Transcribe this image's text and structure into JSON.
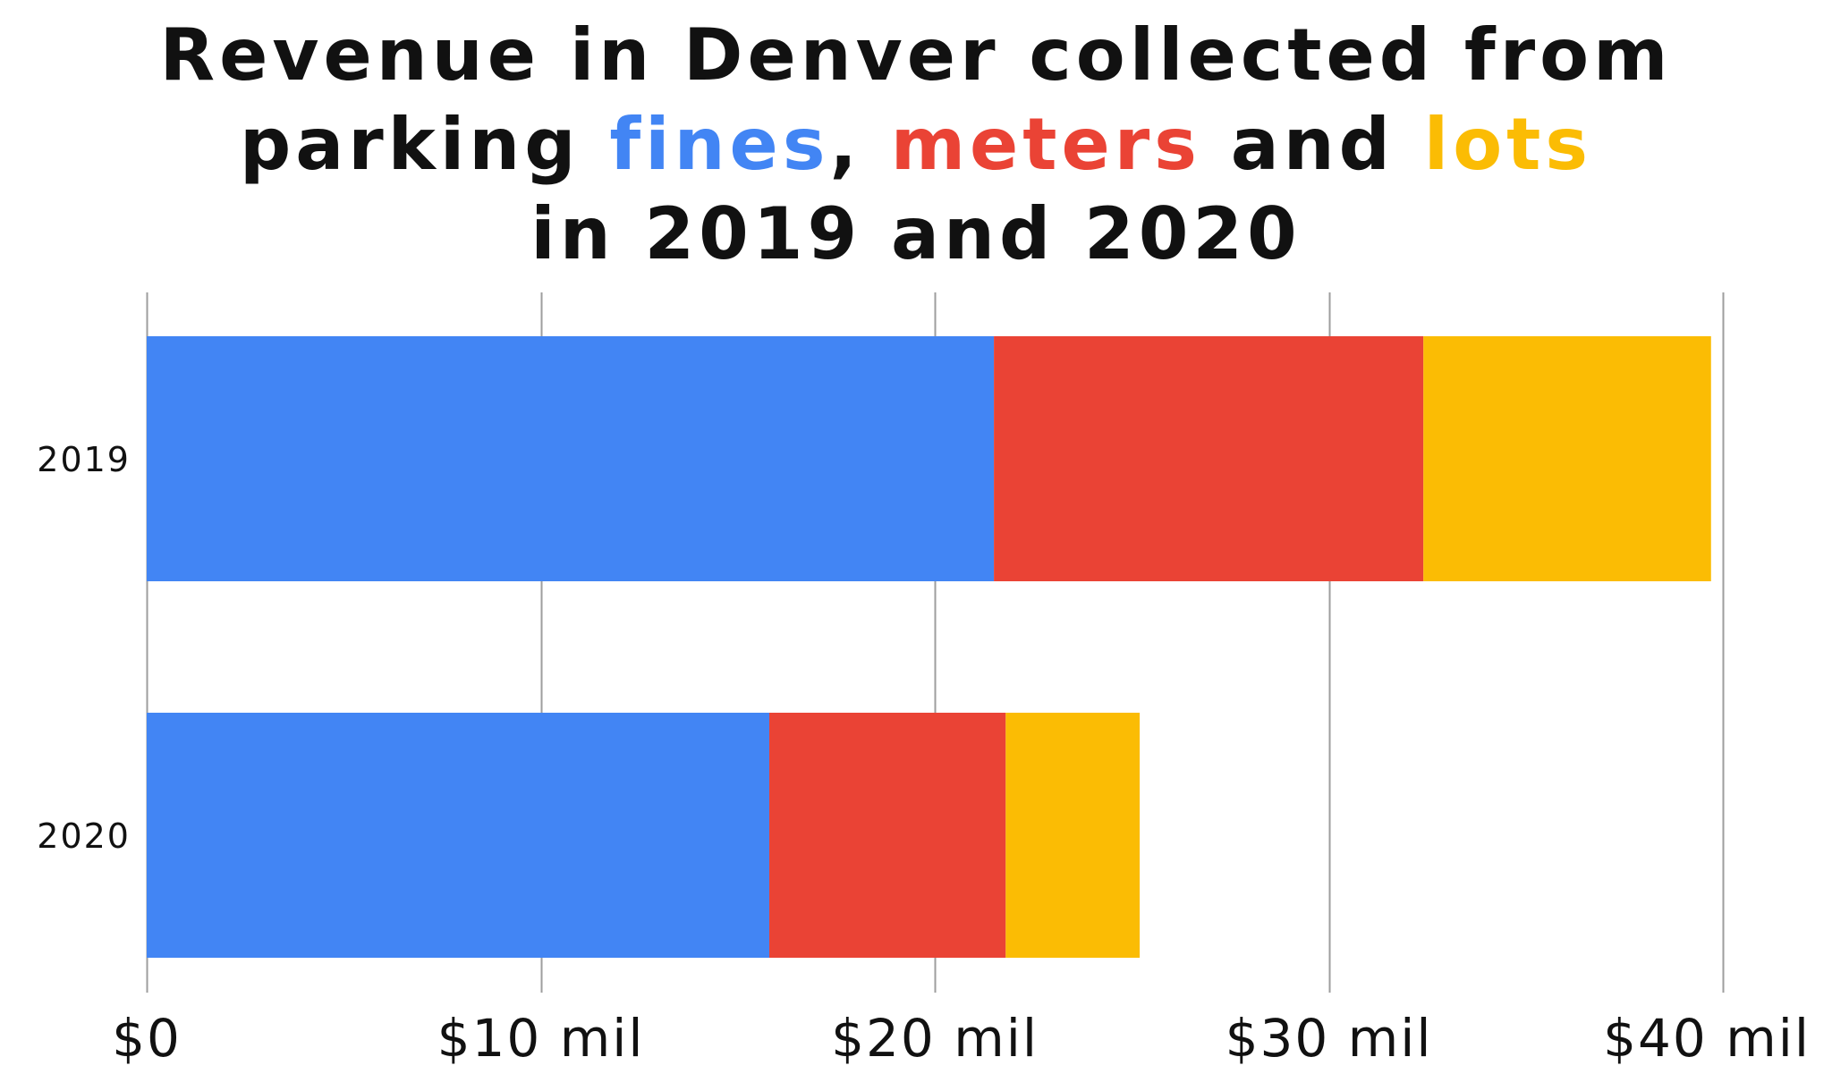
{
  "chart_data": {
    "type": "bar",
    "orientation": "horizontal",
    "stacked": true,
    "title": {
      "line1": "Revenue in Denver collected from",
      "line2_prefix": "parking ",
      "line2_fines": "fines",
      "line2_sep1": ", ",
      "line2_meters": "meters",
      "line2_sep2": " and ",
      "line2_lots": "lots",
      "line3": "in 2019 and 2020"
    },
    "categories": [
      "2019",
      "2020"
    ],
    "series": [
      {
        "key": "fines",
        "color": "#4285F4",
        "values": [
          21.5,
          15.8
        ]
      },
      {
        "key": "meters",
        "color": "#EA4335",
        "values": [
          10.9,
          6.0
        ]
      },
      {
        "key": "lots",
        "color": "#FBBC04",
        "values": [
          7.3,
          3.4
        ]
      }
    ],
    "xlim": [
      0,
      40
    ],
    "xticks": [
      {
        "value": 0,
        "label": "$0"
      },
      {
        "value": 10,
        "label": "$10 mil"
      },
      {
        "value": 20,
        "label": "$20 mil"
      },
      {
        "value": 30,
        "label": "$30 mil"
      },
      {
        "value": 40,
        "label": "$40 mil"
      }
    ],
    "grid": true,
    "legend": "none",
    "gridline_color": "#9e9e9e"
  }
}
